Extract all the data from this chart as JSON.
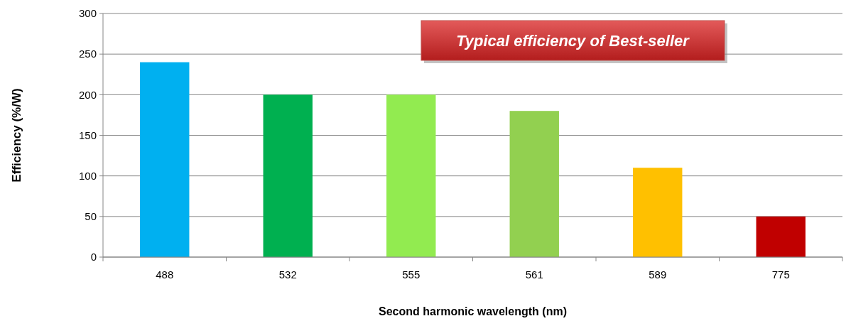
{
  "chart_data": {
    "type": "bar",
    "title": "Typical efficiency of Best-seller",
    "xlabel": "Second harmonic wavelength (nm)",
    "ylabel": "Efficiency (%/W)",
    "categories": [
      "488",
      "532",
      "555",
      "561",
      "589",
      "775"
    ],
    "values": [
      240,
      200,
      200,
      180,
      110,
      50
    ],
    "colors": [
      "#00b0f0",
      "#00b050",
      "#92eb50",
      "#92d050",
      "#ffc000",
      "#c00000"
    ],
    "ylim": [
      0,
      300
    ],
    "yticks": [
      0,
      50,
      100,
      150,
      200,
      250,
      300
    ],
    "grid": "y"
  }
}
